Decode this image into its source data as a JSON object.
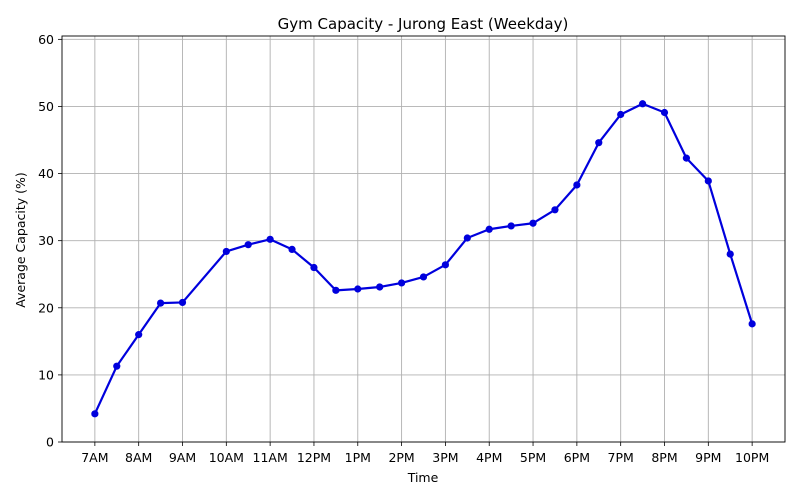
{
  "chart_data": {
    "type": "line",
    "title": "Gym Capacity - Jurong East (Weekday)",
    "xlabel": "Time",
    "ylabel": "Average Capacity (%)",
    "x_ticks": [
      "7AM",
      "8AM",
      "9AM",
      "10AM",
      "11AM",
      "12PM",
      "1PM",
      "2PM",
      "3PM",
      "4PM",
      "5PM",
      "6PM",
      "7PM",
      "8PM",
      "9PM",
      "10PM"
    ],
    "y_ticks": [
      0,
      10,
      20,
      30,
      40,
      50,
      60
    ],
    "ylim": [
      0,
      60.5
    ],
    "xlim": [
      6.25,
      22.75
    ],
    "grid": true,
    "color": "#0000dd",
    "series": [
      {
        "x": [
          7,
          7.5,
          8,
          8.5,
          9,
          10,
          10.5,
          11,
          11.5,
          12,
          12.5,
          13,
          13.5,
          14,
          14.5,
          15,
          15.5,
          16,
          16.5,
          17,
          17.5,
          18,
          18.5,
          19,
          19.5,
          20,
          20.5,
          21,
          21.5,
          22
        ],
        "values": [
          4.2,
          11.3,
          16.0,
          20.7,
          20.8,
          28.4,
          29.4,
          30.2,
          28.7,
          26.0,
          22.6,
          22.8,
          23.1,
          23.7,
          24.6,
          26.4,
          30.4,
          31.7,
          32.2,
          32.6,
          34.6,
          38.3,
          44.6,
          48.8,
          50.4,
          49.1,
          42.3,
          38.9,
          28.0,
          17.6
        ]
      }
    ]
  }
}
